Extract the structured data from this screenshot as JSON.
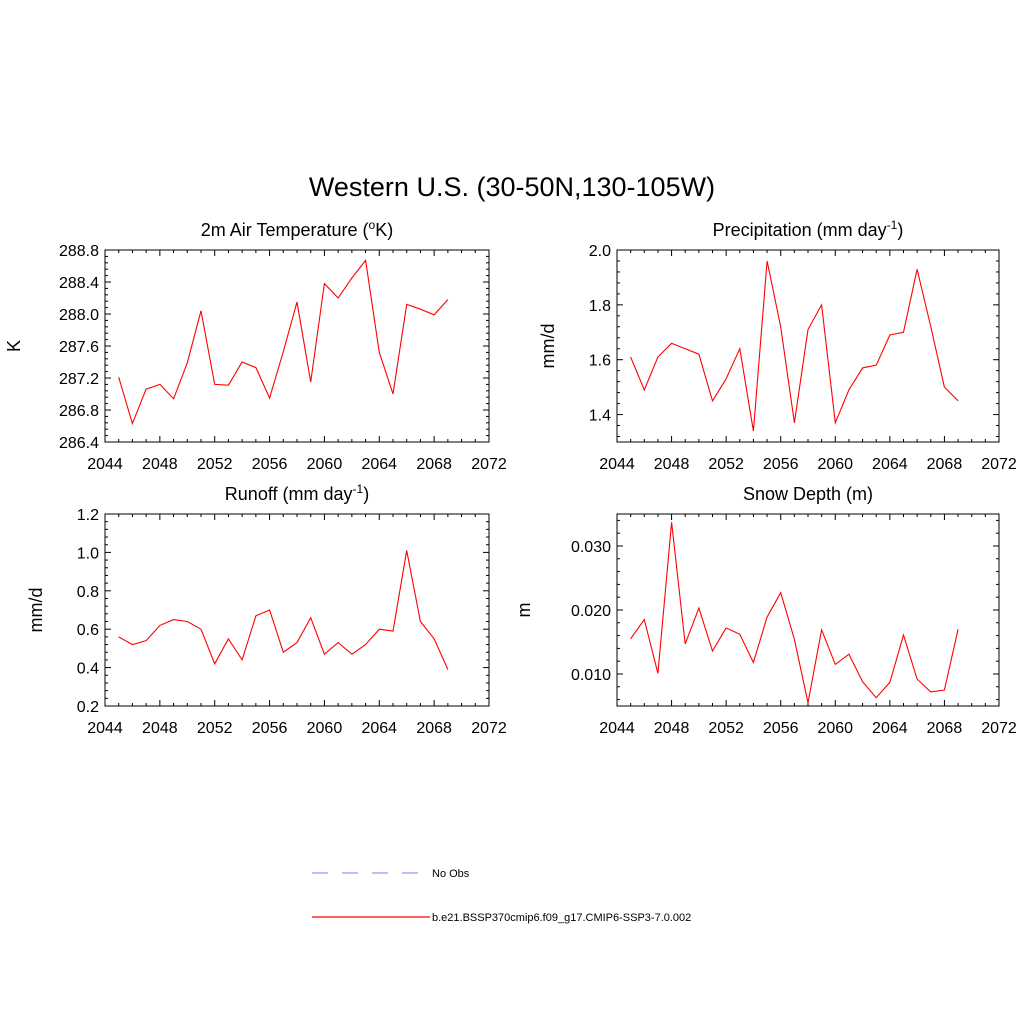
{
  "figure": {
    "title": "Western U.S. (30-50N,130-105W)"
  },
  "legend": {
    "entries": [
      {
        "label": "No Obs",
        "color": "#9999ff",
        "dashed": true
      },
      {
        "label": "b.e21.BSSP370cmip6.f09_g17.CMIP6-SSP3-7.0.002",
        "color": "#ff0000",
        "dashed": false
      }
    ]
  },
  "chart_data": [
    {
      "type": "line",
      "title": "2m Air Temperature (oK)",
      "title_parts": [
        "2m Air Temperature (",
        "o",
        "K)"
      ],
      "title_script": "sup",
      "ylabel": "K",
      "xlim": [
        2044,
        2072
      ],
      "ylim": [
        286.4,
        288.8
      ],
      "xticks": [
        2044,
        2048,
        2052,
        2056,
        2060,
        2064,
        2068,
        2072
      ],
      "yticks": [
        286.4,
        286.8,
        287.2,
        287.6,
        288.0,
        288.4,
        288.8
      ],
      "ytick_labels": [
        "286.4",
        "286.8",
        "287.2",
        "287.6",
        "288.0",
        "288.4",
        "288.8"
      ],
      "x": [
        2045,
        2046,
        2047,
        2048,
        2049,
        2050,
        2051,
        2052,
        2053,
        2054,
        2055,
        2056,
        2057,
        2058,
        2059,
        2060,
        2061,
        2062,
        2063,
        2064,
        2065,
        2066,
        2067,
        2068,
        2069
      ],
      "series": [
        {
          "color": "#ff0000",
          "values": [
            287.21,
            286.63,
            287.06,
            287.12,
            286.94,
            287.39,
            288.04,
            287.12,
            287.11,
            287.4,
            287.33,
            286.95,
            287.53,
            288.15,
            287.15,
            288.38,
            288.2,
            288.45,
            288.67,
            287.52,
            287.0,
            288.12,
            288.06,
            287.99,
            288.18
          ]
        }
      ]
    },
    {
      "type": "line",
      "title": "Precipitation (mm day-1)",
      "title_parts": [
        "Precipitation (mm day",
        "-1",
        ")"
      ],
      "title_script": "sup",
      "ylabel": "mm/d",
      "xlim": [
        2044,
        2072
      ],
      "ylim": [
        1.3,
        2.0
      ],
      "xticks": [
        2044,
        2048,
        2052,
        2056,
        2060,
        2064,
        2068,
        2072
      ],
      "yticks": [
        1.4,
        1.6,
        1.8,
        2.0
      ],
      "ytick_labels": [
        "1.4",
        "1.6",
        "1.8",
        "2.0"
      ],
      "x": [
        2045,
        2046,
        2047,
        2048,
        2049,
        2050,
        2051,
        2052,
        2053,
        2054,
        2055,
        2056,
        2057,
        2058,
        2059,
        2060,
        2061,
        2062,
        2063,
        2064,
        2065,
        2066,
        2067,
        2068,
        2069
      ],
      "series": [
        {
          "color": "#ff0000",
          "values": [
            1.61,
            1.49,
            1.61,
            1.66,
            1.64,
            1.62,
            1.45,
            1.53,
            1.64,
            1.34,
            1.96,
            1.72,
            1.37,
            1.71,
            1.8,
            1.37,
            1.49,
            1.57,
            1.58,
            1.69,
            1.7,
            1.93,
            1.72,
            1.5,
            1.45
          ]
        }
      ]
    },
    {
      "type": "line",
      "title": "Runoff (mm day-1)",
      "title_parts": [
        "Runoff (mm day",
        "-1",
        ")"
      ],
      "title_script": "sup",
      "ylabel": "mm/d",
      "xlim": [
        2044,
        2072
      ],
      "ylim": [
        0.2,
        1.2
      ],
      "xticks": [
        2044,
        2048,
        2052,
        2056,
        2060,
        2064,
        2068,
        2072
      ],
      "yticks": [
        0.2,
        0.4,
        0.6,
        0.8,
        1.0,
        1.2
      ],
      "ytick_labels": [
        "0.2",
        "0.4",
        "0.6",
        "0.8",
        "1.0",
        "1.2"
      ],
      "x": [
        2045,
        2046,
        2047,
        2048,
        2049,
        2050,
        2051,
        2052,
        2053,
        2054,
        2055,
        2056,
        2057,
        2058,
        2059,
        2060,
        2061,
        2062,
        2063,
        2064,
        2065,
        2066,
        2067,
        2068,
        2069
      ],
      "series": [
        {
          "color": "#ff0000",
          "values": [
            0.56,
            0.52,
            0.54,
            0.62,
            0.65,
            0.64,
            0.6,
            0.42,
            0.55,
            0.44,
            0.67,
            0.7,
            0.48,
            0.53,
            0.66,
            0.47,
            0.53,
            0.47,
            0.52,
            0.6,
            0.59,
            1.01,
            0.64,
            0.55,
            0.39
          ]
        }
      ]
    },
    {
      "type": "line",
      "title": "Snow Depth (m)",
      "title_parts": [
        "Snow Depth (m)",
        "",
        ""
      ],
      "title_script": "none",
      "ylabel": "m",
      "xlim": [
        2044,
        2072
      ],
      "ylim": [
        0.005,
        0.035
      ],
      "xticks": [
        2044,
        2048,
        2052,
        2056,
        2060,
        2064,
        2068,
        2072
      ],
      "yticks": [
        0.01,
        0.02,
        0.03
      ],
      "ytick_labels": [
        "0.010",
        "0.020",
        "0.030"
      ],
      "x": [
        2045,
        2046,
        2047,
        2048,
        2049,
        2050,
        2051,
        2052,
        2053,
        2054,
        2055,
        2056,
        2057,
        2058,
        2059,
        2060,
        2061,
        2062,
        2063,
        2064,
        2065,
        2066,
        2067,
        2068,
        2069
      ],
      "series": [
        {
          "color": "#ff0000",
          "values": [
            0.0155,
            0.0185,
            0.0101,
            0.0337,
            0.0147,
            0.0203,
            0.0136,
            0.0172,
            0.0162,
            0.0118,
            0.0189,
            0.0227,
            0.0154,
            0.0055,
            0.0169,
            0.0115,
            0.0131,
            0.0088,
            0.0063,
            0.0087,
            0.0161,
            0.0092,
            0.0072,
            0.0075,
            0.017
          ]
        }
      ]
    }
  ]
}
